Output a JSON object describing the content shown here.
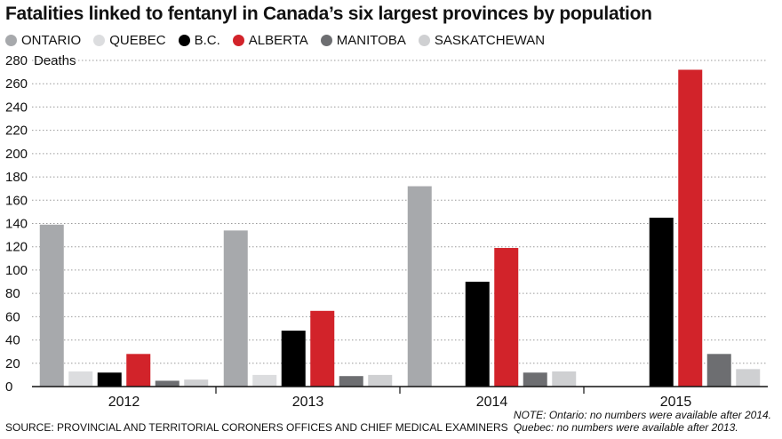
{
  "chart_data": {
    "type": "bar",
    "title": "Fatalities linked to fentanyl in Canada’s six largest provinces by population",
    "ylabel": "Deaths",
    "ylim": [
      0,
      280
    ],
    "yticks": [
      0,
      20,
      40,
      60,
      80,
      100,
      120,
      140,
      160,
      180,
      200,
      220,
      240,
      260,
      280
    ],
    "grid": true,
    "legend_position": "top",
    "categories": [
      "2012",
      "2013",
      "2014",
      "2015"
    ],
    "series": [
      {
        "name": "ONTARIO",
        "color": "#a7a9ac",
        "values": [
          139,
          134,
          172,
          null
        ]
      },
      {
        "name": "QUEBEC",
        "color": "#dcdddf",
        "values": [
          13,
          10,
          null,
          null
        ]
      },
      {
        "name": "B.C.",
        "color": "#000000",
        "values": [
          12,
          48,
          90,
          145
        ]
      },
      {
        "name": "ALBERTA",
        "color": "#d2232a",
        "values": [
          28,
          65,
          119,
          272
        ]
      },
      {
        "name": "MANITOBA",
        "color": "#6d6e71",
        "values": [
          5,
          9,
          12,
          28
        ]
      },
      {
        "name": "SASKATCHEWAN",
        "color": "#cfd0d2",
        "values": [
          6,
          10,
          13,
          15
        ]
      }
    ]
  },
  "source": "SOURCE: PROVINCIAL AND TERRITORIAL CORONERS OFFICES AND CHIEF MEDICAL EXAMINERS",
  "notes": [
    "NOTE:  Ontario: no numbers were available after 2014.",
    "Quebec: no numbers were available after 2013."
  ]
}
